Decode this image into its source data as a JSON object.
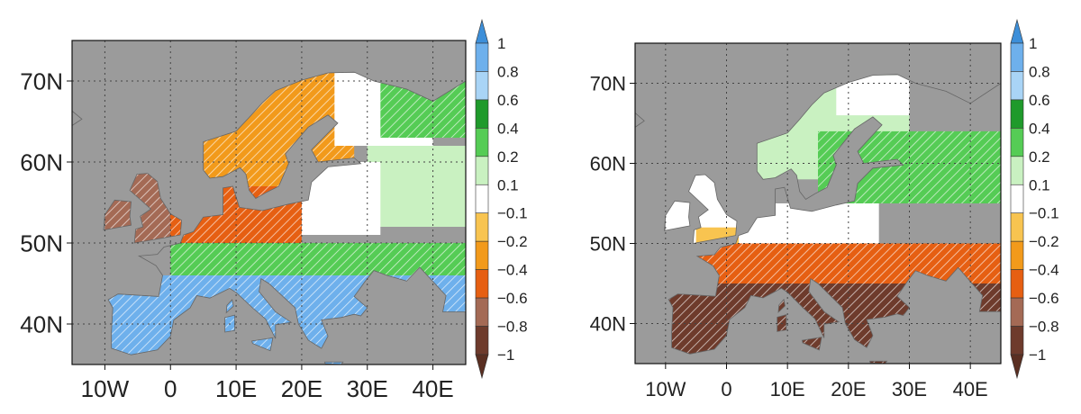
{
  "colors": {
    "background": "#9b9b9b",
    "land_outline": "#666666",
    "grid": "#444444",
    "hatch": "#ffffff"
  },
  "colorbar": {
    "labels": [
      "1",
      "0.8",
      "0.6",
      "0.4",
      "0.2",
      "0.1",
      "−0.1",
      "−0.2",
      "−0.4",
      "−0.6",
      "−0.8",
      "−1"
    ],
    "bins": [
      {
        "range": ">1",
        "color": "#3d8fd9"
      },
      {
        "range": "0.8 to 1",
        "color": "#6eb0ec"
      },
      {
        "range": "0.6 to 0.8",
        "color": "#a9d4f6"
      },
      {
        "range": "0.4 to 0.6",
        "color": "#1f9a2b"
      },
      {
        "range": "0.2 to 0.4",
        "color": "#55cc55"
      },
      {
        "range": "0.1 to 0.2",
        "color": "#c9f1c1"
      },
      {
        "range": "-0.1 to 0.1",
        "color": "#ffffff"
      },
      {
        "range": "-0.2 to -0.1",
        "color": "#f8c450"
      },
      {
        "range": "-0.4 to -0.2",
        "color": "#f29a1b"
      },
      {
        "range": "-0.6 to -0.4",
        "color": "#e65f12"
      },
      {
        "range": "-0.8 to -0.6",
        "color": "#a46a55"
      },
      {
        "range": "-1 to -0.8",
        "color": "#6e3b2c"
      },
      {
        "range": "<-1",
        "color": "#5a2f22"
      }
    ]
  },
  "panels": [
    {
      "id": "left",
      "lat_ticks": [
        "70N",
        "60N",
        "50N",
        "40N"
      ],
      "lon_ticks": [
        "10W",
        "0",
        "10E",
        "20E",
        "30E",
        "40E"
      ],
      "lat_values": [
        70,
        60,
        50,
        40
      ],
      "lon_values": [
        -10,
        0,
        10,
        20,
        30,
        40
      ],
      "lon_range": [
        -15,
        45
      ],
      "lat_range": [
        35,
        75
      ],
      "regions": [
        {
          "name": "scandinavia",
          "bin": "-0.4 to -0.2",
          "hatched": true,
          "lon": [
            5,
            28
          ],
          "lat": [
            57,
            71
          ]
        },
        {
          "name": "north-finland-russia",
          "bin": "-0.1 to 0.1",
          "hatched": false,
          "lon": [
            25,
            40
          ],
          "lat": [
            62,
            71
          ]
        },
        {
          "name": "kola-arctic",
          "bin": "0.2 to 0.4",
          "hatched": true,
          "lon": [
            32,
            45
          ],
          "lat": [
            63,
            70
          ]
        },
        {
          "name": "russia-north",
          "bin": "0.1 to 0.2",
          "hatched": false,
          "lon": [
            30,
            45
          ],
          "lat": [
            52,
            62
          ]
        },
        {
          "name": "baltic-russia",
          "bin": "-0.1 to 0.1",
          "hatched": false,
          "lon": [
            20,
            32
          ],
          "lat": [
            51,
            60
          ]
        },
        {
          "name": "british-isles",
          "bin": "-0.8 to -0.6",
          "hatched": true,
          "lon": [
            -10,
            2
          ],
          "lat": [
            50,
            59
          ]
        },
        {
          "name": "north-central-europe",
          "bin": "-0.6 to -0.4",
          "hatched": true,
          "lon": [
            0,
            20
          ],
          "lat": [
            50,
            57
          ]
        },
        {
          "name": "central-band",
          "bin": "0.2 to 0.4",
          "hatched": true,
          "lon": [
            0,
            45
          ],
          "lat": [
            46,
            50
          ]
        },
        {
          "name": "southern-europe",
          "bin": "0.8 to 1",
          "hatched": true,
          "lon": [
            -10,
            45
          ],
          "lat": [
            35,
            46
          ]
        }
      ]
    },
    {
      "id": "right",
      "lat_ticks": [
        "70N",
        "60N",
        "50N",
        "40N"
      ],
      "lon_ticks": [
        "10W",
        "0",
        "10E",
        "20E",
        "30E",
        "40E"
      ],
      "lat_values": [
        70,
        60,
        50,
        40
      ],
      "lon_values": [
        -10,
        0,
        10,
        20,
        30,
        40
      ],
      "lon_range": [
        -15,
        45
      ],
      "lat_range": [
        35,
        75
      ],
      "regions": [
        {
          "name": "scandinavia",
          "bin": "0.1 to 0.2",
          "hatched": false,
          "lon": [
            5,
            30
          ],
          "lat": [
            58,
            71
          ]
        },
        {
          "name": "north-cape",
          "bin": "-0.1 to 0.1",
          "hatched": false,
          "lon": [
            18,
            30
          ],
          "lat": [
            66,
            71
          ]
        },
        {
          "name": "eastern-baltic-russia",
          "bin": "0.2 to 0.4",
          "hatched": true,
          "lon": [
            15,
            45
          ],
          "lat": [
            55,
            64
          ]
        },
        {
          "name": "british-isles",
          "bin": "-0.1 to 0.1",
          "hatched": false,
          "lon": [
            -10,
            2
          ],
          "lat": [
            50,
            59
          ]
        },
        {
          "name": "north-central-europe",
          "bin": "-0.1 to 0.1",
          "hatched": false,
          "lon": [
            2,
            25
          ],
          "lat": [
            50,
            55
          ]
        },
        {
          "name": "england-south",
          "bin": "-0.2 to -0.1",
          "hatched": false,
          "lon": [
            -5,
            2
          ],
          "lat": [
            50,
            52
          ]
        },
        {
          "name": "central-band",
          "bin": "-0.6 to -0.4",
          "hatched": true,
          "lon": [
            -5,
            45
          ],
          "lat": [
            45,
            50
          ]
        },
        {
          "name": "southern-europe",
          "bin": "-1 to -0.8",
          "hatched": true,
          "lon": [
            -10,
            45
          ],
          "lat": [
            35,
            45
          ]
        }
      ]
    }
  ]
}
